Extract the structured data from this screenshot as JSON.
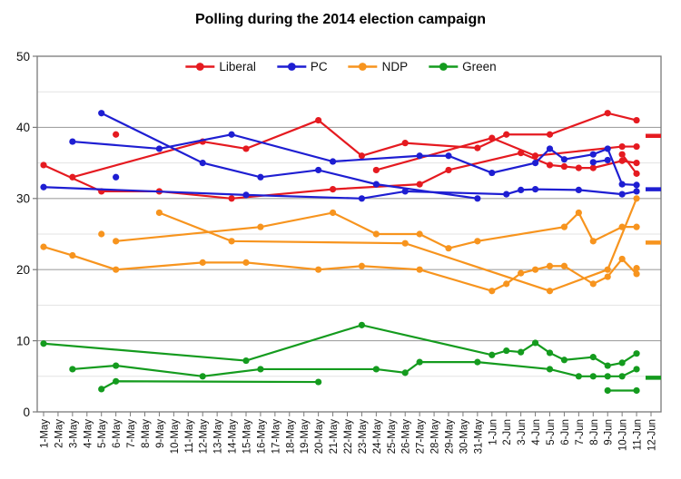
{
  "title": "Polling during the 2014 election campaign",
  "legend": [
    {
      "label": "Liberal",
      "color": "#e51a20"
    },
    {
      "label": "PC",
      "color": "#1e1ed2"
    },
    {
      "label": "NDP",
      "color": "#f7941e"
    },
    {
      "label": "Green",
      "color": "#149b1e"
    }
  ],
  "chart_data": {
    "type": "line",
    "title": "Polling during the 2014 election campaign",
    "x_labels": [
      "1-May",
      "2-May",
      "3-May",
      "4-May",
      "5-May",
      "6-May",
      "7-May",
      "8-May",
      "9-May",
      "10-May",
      "11-May",
      "12-May",
      "13-May",
      "14-May",
      "15-May",
      "16-May",
      "17-May",
      "18-May",
      "19-May",
      "20-May",
      "21-May",
      "22-May",
      "23-May",
      "24-May",
      "25-May",
      "26-May",
      "27-May",
      "28-May",
      "29-May",
      "30-May",
      "31-May",
      "1-Jun",
      "2-Jun",
      "3-Jun",
      "4-Jun",
      "5-Jun",
      "6-Jun",
      "7-Jun",
      "8-Jun",
      "9-Jun",
      "10-Jun",
      "11-Jun",
      "12-Jun"
    ],
    "ylim": [
      0,
      50
    ],
    "y_ticks": [
      0,
      10,
      20,
      30,
      40,
      50
    ],
    "grid_step": 5,
    "grid_on": true,
    "legend_position": "top-center",
    "colors": {
      "Liberal": "#e51a20",
      "PC": "#1e1ed2",
      "NDP": "#f7941e",
      "Green": "#149b1e"
    },
    "series": [
      {
        "name": "Liberal track 1",
        "party": "Liberal",
        "color": "#e51a20",
        "points": [
          [
            0,
            34.7
          ],
          [
            4,
            31
          ],
          [
            8,
            31
          ],
          [
            13,
            30
          ],
          [
            20,
            31.3
          ],
          [
            26,
            32
          ],
          [
            28,
            34
          ],
          [
            33,
            36.4
          ],
          [
            35,
            34.7
          ],
          [
            36,
            34.5
          ],
          [
            37,
            34.3
          ],
          [
            38,
            34.3
          ],
          [
            40,
            35.3
          ],
          [
            41,
            35
          ]
        ]
      },
      {
        "name": "Liberal track 2",
        "party": "Liberal",
        "color": "#e51a20",
        "points": [
          [
            2,
            33
          ],
          [
            11,
            38
          ],
          [
            14,
            37
          ],
          [
            19,
            41
          ],
          [
            22,
            36
          ],
          [
            25,
            37.8
          ],
          [
            30,
            37.1
          ],
          [
            32,
            39
          ],
          [
            35,
            39
          ],
          [
            39,
            42
          ],
          [
            41,
            41
          ]
        ]
      },
      {
        "name": "Liberal track 3",
        "party": "Liberal",
        "color": "#e51a20",
        "points": [
          [
            23,
            34
          ],
          [
            31,
            38.5
          ],
          [
            34,
            36
          ],
          [
            40,
            37.3
          ],
          [
            41,
            37.3
          ]
        ]
      },
      {
        "name": "Liberal track 4",
        "party": "Liberal",
        "color": "#e51a20",
        "points": [
          [
            40,
            36.2
          ],
          [
            41,
            33.5
          ]
        ]
      },
      {
        "name": "Liberal single poll",
        "party": "Liberal",
        "color": "#e51a20",
        "points": [
          [
            5,
            39
          ]
        ]
      },
      {
        "name": "PC track 1",
        "party": "PC",
        "color": "#1e1ed2",
        "points": [
          [
            0,
            31.6
          ],
          [
            14,
            30.5
          ],
          [
            22,
            30
          ],
          [
            25,
            31
          ],
          [
            32,
            30.6
          ],
          [
            33,
            31.2
          ],
          [
            34,
            31.3
          ],
          [
            37,
            31.2
          ],
          [
            40,
            30.6
          ],
          [
            41,
            31
          ]
        ]
      },
      {
        "name": "PC track 2",
        "party": "PC",
        "color": "#1e1ed2",
        "points": [
          [
            2,
            38
          ],
          [
            8,
            37
          ],
          [
            13,
            39
          ],
          [
            20,
            35.2
          ],
          [
            26,
            36
          ],
          [
            28,
            36
          ],
          [
            31,
            33.6
          ],
          [
            34,
            35
          ],
          [
            35,
            37
          ],
          [
            36,
            35.5
          ],
          [
            38,
            36.2
          ],
          [
            39,
            37
          ],
          [
            40,
            32
          ],
          [
            41,
            31.9
          ]
        ]
      },
      {
        "name": "PC track 3",
        "party": "PC",
        "color": "#1e1ed2",
        "points": [
          [
            4,
            42
          ],
          [
            11,
            35
          ],
          [
            15,
            33
          ],
          [
            19,
            34
          ],
          [
            23,
            32
          ],
          [
            30,
            30
          ]
        ]
      },
      {
        "name": "PC track 4",
        "party": "PC",
        "color": "#1e1ed2",
        "points": [
          [
            38,
            35.1
          ],
          [
            39,
            35.4
          ]
        ]
      },
      {
        "name": "PC single poll",
        "party": "PC",
        "color": "#1e1ed2",
        "points": [
          [
            5,
            33
          ]
        ]
      },
      {
        "name": "NDP track 1",
        "party": "NDP",
        "color": "#f7941e",
        "points": [
          [
            0,
            23.2
          ],
          [
            2,
            22
          ],
          [
            5,
            20
          ],
          [
            11,
            21
          ],
          [
            14,
            21
          ],
          [
            19,
            20
          ],
          [
            22,
            20.5
          ],
          [
            26,
            20
          ],
          [
            31,
            17
          ],
          [
            32,
            18
          ],
          [
            33,
            19.5
          ],
          [
            34,
            20
          ],
          [
            35,
            20.5
          ],
          [
            36,
            20.5
          ],
          [
            38,
            18
          ],
          [
            39,
            19
          ],
          [
            40,
            21.5
          ],
          [
            41,
            19.4
          ]
        ]
      },
      {
        "name": "NDP track 2",
        "party": "NDP",
        "color": "#f7941e",
        "points": [
          [
            5,
            24
          ],
          [
            15,
            26
          ],
          [
            20,
            28
          ],
          [
            23,
            25
          ],
          [
            26,
            25
          ],
          [
            28,
            23
          ],
          [
            30,
            24
          ],
          [
            36,
            26
          ],
          [
            37,
            28
          ],
          [
            38,
            24
          ],
          [
            40,
            26
          ],
          [
            41,
            26
          ]
        ]
      },
      {
        "name": "NDP track 3",
        "party": "NDP",
        "color": "#f7941e",
        "points": [
          [
            8,
            28
          ],
          [
            13,
            24
          ],
          [
            25,
            23.7
          ],
          [
            35,
            17
          ],
          [
            39,
            20
          ],
          [
            41,
            30
          ]
        ]
      },
      {
        "name": "NDP single poll a",
        "party": "NDP",
        "color": "#f7941e",
        "points": [
          [
            4,
            25
          ]
        ]
      },
      {
        "name": "NDP single poll b",
        "party": "NDP",
        "color": "#f7941e",
        "points": [
          [
            41,
            20.2
          ]
        ]
      },
      {
        "name": "Green track 1",
        "party": "Green",
        "color": "#149b1e",
        "points": [
          [
            0,
            9.6
          ],
          [
            14,
            7.2
          ],
          [
            22,
            12.2
          ],
          [
            31,
            8
          ],
          [
            32,
            8.6
          ],
          [
            33,
            8.4
          ],
          [
            34,
            9.7
          ],
          [
            35,
            8.3
          ],
          [
            36,
            7.3
          ],
          [
            38,
            7.7
          ],
          [
            39,
            6.5
          ],
          [
            40,
            6.9
          ],
          [
            41,
            8.2
          ]
        ]
      },
      {
        "name": "Green track 2",
        "party": "Green",
        "color": "#149b1e",
        "points": [
          [
            2,
            6
          ],
          [
            5,
            6.5
          ],
          [
            11,
            5
          ],
          [
            15,
            6
          ],
          [
            23,
            6
          ],
          [
            25,
            5.5
          ],
          [
            26,
            7
          ],
          [
            30,
            7
          ],
          [
            35,
            6
          ],
          [
            37,
            5
          ],
          [
            38,
            5
          ],
          [
            39,
            5
          ],
          [
            40,
            5
          ],
          [
            41,
            6
          ]
        ]
      },
      {
        "name": "Green track 3",
        "party": "Green",
        "color": "#149b1e",
        "points": [
          [
            4,
            3.2
          ],
          [
            5,
            4.3
          ],
          [
            19,
            4.2
          ]
        ]
      },
      {
        "name": "Green track 4",
        "party": "Green",
        "color": "#149b1e",
        "points": [
          [
            39,
            3
          ],
          [
            41,
            3
          ]
        ]
      }
    ],
    "result_markers": [
      {
        "party": "Liberal",
        "value": 38.8,
        "color": "#e51a20"
      },
      {
        "party": "PC",
        "value": 31.3,
        "color": "#1e1ed2"
      },
      {
        "party": "NDP",
        "value": 23.8,
        "color": "#f7941e"
      },
      {
        "party": "Green",
        "value": 4.8,
        "color": "#149b1e"
      }
    ]
  }
}
